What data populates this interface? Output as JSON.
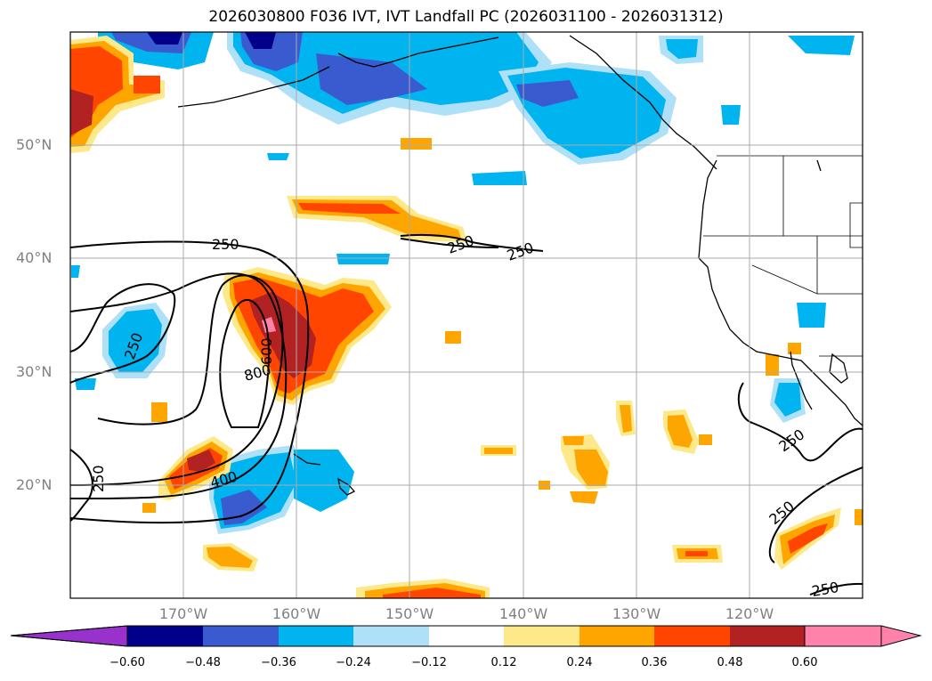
{
  "title": "2026030800 F036 IVT, IVT Landfall PC (2026031100 - 2026031312)",
  "map": {
    "lat_labels": [
      "50°N",
      "40°N",
      "30°N",
      "20°N"
    ],
    "lon_labels": [
      "170°W",
      "160°W",
      "150°W",
      "140°W",
      "130°W",
      "120°W"
    ],
    "contour_labels": [
      "250",
      "250",
      "250",
      "250",
      "600",
      "800",
      "400",
      "250",
      "250",
      "250",
      "250"
    ]
  },
  "colorbar": {
    "ticks": [
      "−0.60",
      "−0.48",
      "−0.36",
      "−0.24",
      "−0.12",
      "0.12",
      "0.24",
      "0.36",
      "0.48",
      "0.60"
    ],
    "colors": [
      "#9932cc",
      "#00008b",
      "#3a5bd0",
      "#00b4f0",
      "#aee0f8",
      "#ffffff",
      "#fde88a",
      "#ffa500",
      "#ff4500",
      "#b22222",
      "#ff82ab"
    ]
  }
}
